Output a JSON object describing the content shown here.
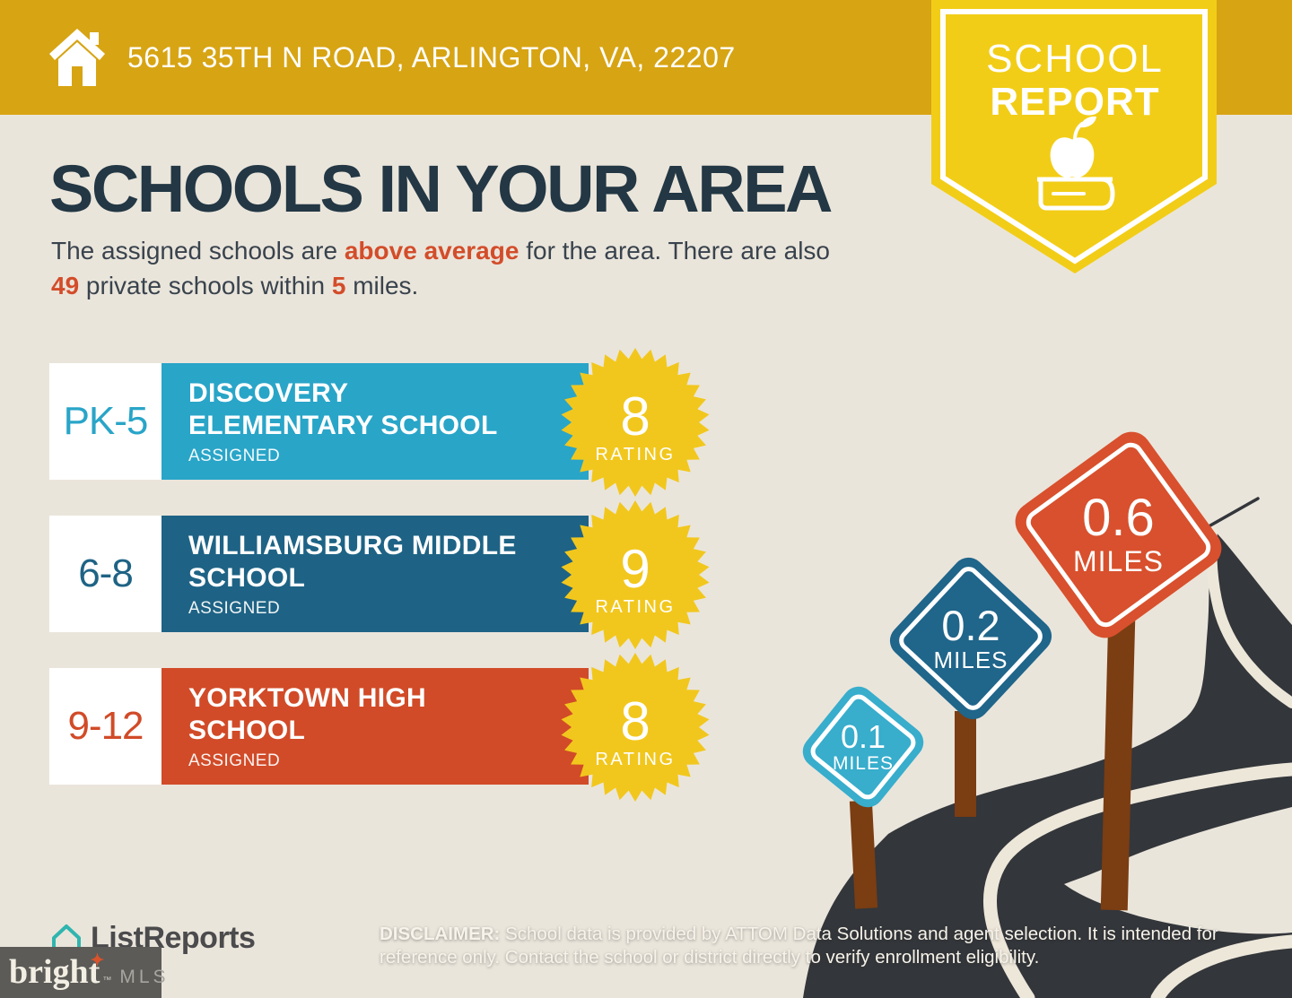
{
  "canvas": {
    "background": "#EAE5DB"
  },
  "header": {
    "background": "#D7A413",
    "address": "5615 35TH N ROAD, ARLINGTON, VA, 22207"
  },
  "ribbon": {
    "background": "#F2CD17",
    "line1": "SCHOOL",
    "line2": "REPORT",
    "icon": "apple-on-book-icon"
  },
  "main": {
    "title": "SCHOOLS IN YOUR AREA",
    "title_color": "#233744",
    "intro": {
      "part1": "The assigned schools are ",
      "highlight1": "above average",
      "part2": " for the area. There are also ",
      "highlight2": "49",
      "part3": " private schools within ",
      "highlight3": "5",
      "part4": " miles.",
      "highlight_color": "#D34D2A",
      "text_color": "#39434D"
    }
  },
  "rating_badge": {
    "color": "#F2C71D",
    "label": "RATING"
  },
  "schools": [
    {
      "grades": "PK-5",
      "name_line1": "DISCOVERY",
      "name_line2": "ELEMENTARY SCHOOL",
      "status": "ASSIGNED",
      "rating": "8",
      "bar_color": "#29A5C8",
      "sign_color": "#38ADCC",
      "distance": "0.1",
      "distance_unit": "MILES"
    },
    {
      "grades": "6-8",
      "name_line1": "WILLIAMSBURG MIDDLE",
      "name_line2": "SCHOOL",
      "status": "ASSIGNED",
      "rating": "9",
      "bar_color": "#1E6385",
      "sign_color": "#20658A",
      "distance": "0.2",
      "distance_unit": "MILES"
    },
    {
      "grades": "9-12",
      "name_line1": "YORKTOWN HIGH",
      "name_line2": "SCHOOL",
      "status": "ASSIGNED",
      "rating": "8",
      "bar_color": "#D14B28",
      "sign_color": "#D8502D",
      "distance": "0.6",
      "distance_unit": "MILES"
    }
  ],
  "road": {
    "color": "#33363A",
    "line_color": "#EDE7DA",
    "post_color": "#7B3D12"
  },
  "footer": {
    "listreports": "ListReports",
    "bright": "bright",
    "trademark": "TM",
    "mls": "MLS",
    "disclaimer_label": "DISCLAIMER:",
    "disclaimer_text": " School data is provided by ATTOM Data Solutions and agent selection. It is intended for reference only. Contact the school or district directly to verify enrollment eligibility."
  }
}
